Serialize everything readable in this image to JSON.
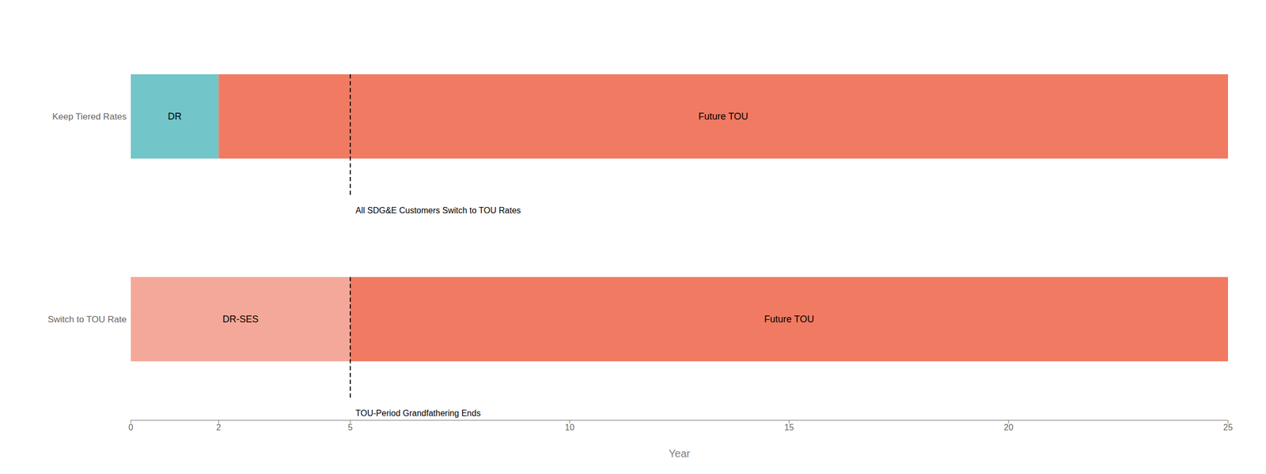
{
  "chart_data": {
    "type": "bar",
    "orientation": "horizontal",
    "stacked": true,
    "grid": false,
    "xlabel": "Year",
    "categories": [
      "Keep Tiered Rates",
      "Switch to TOU Rate"
    ],
    "series": [
      {
        "values": [
          2,
          5
        ],
        "colors": [
          "#72C5C8",
          "#F4A899"
        ],
        "labels": [
          "DR",
          "DR-SES"
        ]
      },
      {
        "values": [
          23,
          20
        ],
        "color": "#F07B62",
        "labels": [
          "Future TOU",
          "Future TOU"
        ]
      }
    ],
    "annotations": [
      {
        "category": "Keep Tiered Rates",
        "x": 5,
        "text": "All SDG&E Customers Switch to TOU Rates"
      },
      {
        "category": "Switch to TOU Rate",
        "x": 5,
        "text": "TOU-Period Grandfathering Ends"
      }
    ],
    "xlim": [
      0,
      25
    ],
    "xticks": [
      0,
      2,
      5,
      10,
      15,
      20,
      25
    ]
  }
}
